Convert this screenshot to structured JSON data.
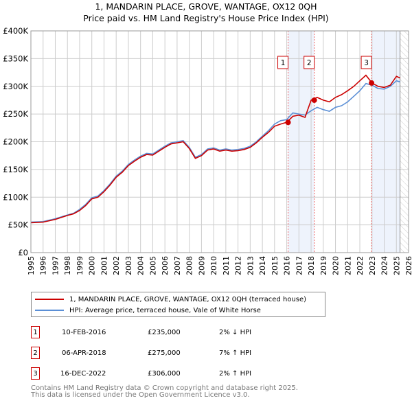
{
  "chart_data": {
    "type": "line",
    "title": "1, MANDARIN PLACE, GROVE, WANTAGE, OX12 0QH",
    "subtitle": "Price paid vs. HM Land Registry's House Price Index (HPI)",
    "xlim": [
      1995,
      2026
    ],
    "ylim": [
      0,
      400000
    ],
    "x_ticks": [
      "1995",
      "1996",
      "1997",
      "1998",
      "1999",
      "2000",
      "2001",
      "2002",
      "2003",
      "2004",
      "2005",
      "2006",
      "2007",
      "2008",
      "2009",
      "2010",
      "2011",
      "2012",
      "2013",
      "2014",
      "2015",
      "2016",
      "2017",
      "2018",
      "2019",
      "2020",
      "2021",
      "2022",
      "2023",
      "2024",
      "2025",
      "2026"
    ],
    "y_ticks": [
      {
        "v": 0,
        "l": "£0"
      },
      {
        "v": 50000,
        "l": "£50K"
      },
      {
        "v": 100000,
        "l": "£100K"
      },
      {
        "v": 150000,
        "l": "£150K"
      },
      {
        "v": 200000,
        "l": "£200K"
      },
      {
        "v": 250000,
        "l": "£250K"
      },
      {
        "v": 300000,
        "l": "£300K"
      },
      {
        "v": 350000,
        "l": "£350K"
      },
      {
        "v": 400000,
        "l": "£400K"
      }
    ],
    "grid": true,
    "x": [
      1995,
      1996,
      1997,
      1998,
      1998.5,
      1999,
      1999.5,
      2000,
      2000.5,
      2001,
      2001.5,
      2002,
      2002.5,
      2003,
      2003.5,
      2004,
      2004.5,
      2005,
      2005.5,
      2006,
      2006.5,
      2007,
      2007.5,
      2008,
      2008.5,
      2009,
      2009.5,
      2010,
      2010.5,
      2011,
      2011.5,
      2012,
      2012.5,
      2013,
      2013.5,
      2014,
      2014.5,
      2015,
      2015.5,
      2016,
      2016.5,
      2017,
      2017.5,
      2018,
      2018.5,
      2019,
      2019.5,
      2020,
      2020.5,
      2021,
      2021.5,
      2022,
      2022.5,
      2023,
      2023.5,
      2024,
      2024.5,
      2025,
      2025.3
    ],
    "series": [
      {
        "name": "1, MANDARIN PLACE, GROVE, WANTAGE, OX12 0QH (terraced house)",
        "color": "#cc0000",
        "values": [
          54000,
          55000,
          60000,
          67000,
          70000,
          76000,
          85000,
          97000,
          100000,
          110000,
          122000,
          136000,
          145000,
          157000,
          165000,
          172000,
          177000,
          176000,
          183000,
          190000,
          196000,
          198000,
          200000,
          188000,
          170000,
          175000,
          185000,
          187000,
          183000,
          185000,
          183000,
          184000,
          186000,
          190000,
          198000,
          208000,
          217000,
          228000,
          232000,
          235000,
          246000,
          248000,
          244000,
          275000,
          280000,
          275000,
          272000,
          280000,
          285000,
          292000,
          300000,
          310000,
          320000,
          306000,
          300000,
          298000,
          302000,
          318000,
          315000
        ]
      },
      {
        "name": "HPI: Average price, terraced house, Vale of White Horse",
        "color": "#5b8fd6",
        "values": [
          55000,
          56000,
          61000,
          68000,
          71000,
          78000,
          87000,
          99000,
          102000,
          112000,
          124000,
          138000,
          147000,
          159000,
          167000,
          174000,
          179000,
          178000,
          185000,
          192000,
          198000,
          200000,
          202000,
          190000,
          172000,
          177000,
          187000,
          189000,
          185000,
          187000,
          185000,
          186000,
          188000,
          192000,
          200000,
          210000,
          220000,
          232000,
          238000,
          240000,
          252000,
          250000,
          248000,
          256000,
          262000,
          258000,
          255000,
          262000,
          265000,
          272000,
          282000,
          292000,
          305000,
          302000,
          296000,
          295000,
          300000,
          310000,
          308000
        ]
      }
    ],
    "sales": [
      {
        "n": "1",
        "x": 2016.11,
        "v": 235000
      },
      {
        "n": "2",
        "x": 2018.26,
        "v": 275000
      },
      {
        "n": "3",
        "x": 2022.96,
        "v": 306000
      }
    ],
    "shaded": [
      [
        2016.11,
        2018.26
      ],
      [
        2022.96,
        2025.3
      ]
    ],
    "hatched_from": 2025.3,
    "legend_placement": "below"
  },
  "transactions": [
    {
      "n": "1",
      "date": "10-FEB-2016",
      "price": "£235,000",
      "hpi": "2% ↓ HPI"
    },
    {
      "n": "2",
      "date": "06-APR-2018",
      "price": "£275,000",
      "hpi": "7% ↑ HPI"
    },
    {
      "n": "3",
      "date": "16-DEC-2022",
      "price": "£306,000",
      "hpi": "2% ↑ HPI"
    }
  ],
  "footer": [
    "Contains HM Land Registry data © Crown copyright and database right 2025.",
    "This data is licensed under the Open Government Licence v3.0."
  ]
}
